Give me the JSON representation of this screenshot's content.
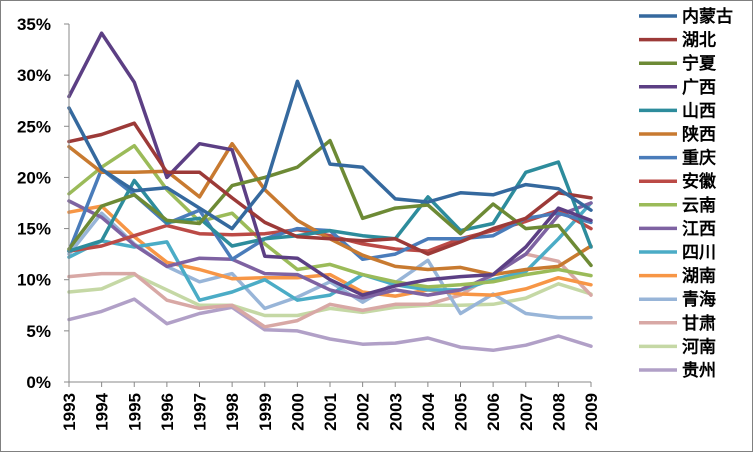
{
  "chart_data": {
    "type": "line",
    "title": "",
    "xlabel": "",
    "ylabel": "",
    "ylim": [
      0,
      35
    ],
    "yticks": [
      "0%",
      "5%",
      "10%",
      "15%",
      "20%",
      "25%",
      "30%",
      "35%"
    ],
    "grid": false,
    "legend_position": "right",
    "categories": [
      "1993",
      "1994",
      "1995",
      "1996",
      "1997",
      "1998",
      "1999",
      "2000",
      "2001",
      "2002",
      "2003",
      "2004",
      "2005",
      "2006",
      "2007",
      "2008",
      "2009"
    ],
    "series": [
      {
        "name": "内蒙古",
        "color": "#35699e",
        "values": [
          26.8,
          20.8,
          18.7,
          19.0,
          17.0,
          15.0,
          19.0,
          29.4,
          21.3,
          21.0,
          17.9,
          17.6,
          18.5,
          18.3,
          19.3,
          18.9,
          16.8
        ]
      },
      {
        "name": "湖北",
        "color": "#9c3a38",
        "values": [
          23.5,
          24.2,
          25.3,
          20.5,
          20.5,
          18.0,
          15.6,
          14.2,
          14.0,
          13.8,
          14.0,
          12.5,
          13.7,
          15.0,
          16.0,
          18.5,
          18.0
        ]
      },
      {
        "name": "宁夏",
        "color": "#6d8a35",
        "values": [
          13.0,
          17.2,
          18.3,
          15.8,
          15.5,
          19.2,
          20.0,
          21.0,
          23.6,
          16.0,
          17.0,
          17.3,
          14.5,
          17.4,
          15.0,
          15.3,
          11.4
        ]
      },
      {
        "name": "广西",
        "color": "#5c3f84",
        "values": [
          27.9,
          34.1,
          29.3,
          20.0,
          23.3,
          22.7,
          12.3,
          12.1,
          10.0,
          8.5,
          9.4,
          10.0,
          10.3,
          10.5,
          13.2,
          17.0,
          15.8
        ]
      },
      {
        "name": "山西",
        "color": "#2d8c9c",
        "values": [
          12.8,
          13.8,
          19.7,
          15.6,
          16.0,
          13.3,
          14.0,
          14.3,
          14.8,
          14.3,
          14.0,
          18.1,
          14.8,
          15.5,
          20.5,
          21.5,
          13.2
        ]
      },
      {
        "name": "陕西",
        "color": "#c87a30",
        "values": [
          23.0,
          20.5,
          20.5,
          20.6,
          18.1,
          23.3,
          18.8,
          15.8,
          14.0,
          12.4,
          11.3,
          11.0,
          11.2,
          10.5,
          11.0,
          11.3,
          13.3
        ]
      },
      {
        "name": "重庆",
        "color": "#4a7cba",
        "values": [
          12.8,
          20.8,
          18.3,
          15.5,
          16.8,
          12.0,
          14.0,
          15.0,
          14.8,
          12.0,
          12.5,
          14.0,
          14.0,
          14.3,
          16.0,
          16.5,
          15.6
        ]
      },
      {
        "name": "安徽",
        "color": "#bb4a46",
        "values": [
          12.8,
          13.3,
          14.3,
          15.3,
          14.5,
          14.4,
          14.5,
          14.9,
          14.3,
          13.5,
          13.0,
          12.8,
          14.0,
          14.8,
          15.7,
          16.8,
          15.0
        ]
      },
      {
        "name": "云南",
        "color": "#9bbb59",
        "values": [
          18.4,
          21.0,
          23.1,
          18.8,
          15.7,
          16.5,
          13.5,
          11.0,
          11.5,
          10.5,
          9.8,
          9.3,
          9.5,
          9.8,
          10.5,
          11.0,
          10.4
        ]
      },
      {
        "name": "江西",
        "color": "#7e62a2",
        "values": [
          17.7,
          16.1,
          13.4,
          11.3,
          12.1,
          12.0,
          10.6,
          10.5,
          9.0,
          8.2,
          9.0,
          8.5,
          9.0,
          10.5,
          12.5,
          16.3,
          17.5
        ]
      },
      {
        "name": "四川",
        "color": "#4bacc6",
        "values": [
          12.2,
          13.8,
          13.2,
          13.7,
          8.0,
          8.8,
          10.0,
          8.0,
          8.5,
          10.5,
          9.5,
          9.0,
          9.0,
          10.0,
          10.8,
          14.0,
          17.5
        ]
      },
      {
        "name": "湖南",
        "color": "#f79646",
        "values": [
          16.6,
          17.2,
          14.2,
          11.7,
          11.0,
          10.1,
          10.2,
          10.2,
          10.5,
          8.8,
          8.4,
          9.0,
          8.6,
          8.5,
          9.1,
          10.2,
          9.5
        ]
      },
      {
        "name": "青海",
        "color": "#98b5d8",
        "values": [
          12.5,
          16.5,
          13.5,
          11.3,
          9.8,
          10.6,
          7.2,
          8.3,
          9.8,
          7.8,
          9.7,
          11.9,
          6.7,
          8.6,
          6.7,
          6.3,
          6.3
        ]
      },
      {
        "name": "甘肃",
        "color": "#d8a8a5",
        "values": [
          10.3,
          10.6,
          10.6,
          8.0,
          7.2,
          7.5,
          5.4,
          6.0,
          7.6,
          7.0,
          7.6,
          7.6,
          8.5,
          10.5,
          12.5,
          11.8,
          8.5
        ]
      },
      {
        "name": "河南",
        "color": "#c5d8a5",
        "values": [
          8.8,
          9.1,
          10.5,
          9.0,
          7.5,
          7.5,
          6.5,
          6.5,
          7.2,
          6.8,
          7.3,
          7.5,
          7.5,
          7.6,
          8.2,
          9.6,
          8.6
        ]
      },
      {
        "name": "贵州",
        "color": "#b1a0c7",
        "values": [
          6.1,
          6.9,
          8.1,
          5.7,
          6.7,
          7.3,
          5.1,
          5.0,
          4.2,
          3.7,
          3.8,
          4.3,
          3.4,
          3.1,
          3.6,
          4.5,
          3.5
        ]
      }
    ]
  }
}
